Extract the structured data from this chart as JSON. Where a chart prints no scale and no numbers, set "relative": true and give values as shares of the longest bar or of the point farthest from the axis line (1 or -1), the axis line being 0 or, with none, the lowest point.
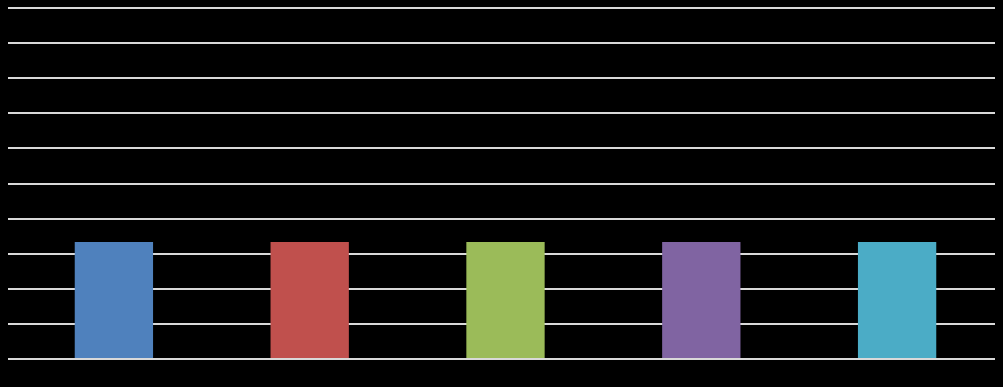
{
  "chart_data": {
    "type": "bar",
    "relative": true,
    "grid": true,
    "legend": false,
    "categories": [
      null,
      null,
      null,
      null,
      null
    ],
    "values": [
      1,
      1,
      1,
      1,
      1
    ],
    "colors": [
      "#4f81bd",
      "#c0504d",
      "#9bbb59",
      "#8064a2",
      "#4bacc6"
    ]
  }
}
